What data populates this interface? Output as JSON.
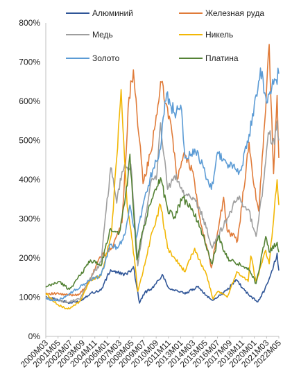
{
  "chart_data": {
    "type": "line",
    "title": "",
    "xlabel": "",
    "ylabel": "",
    "ylim": [
      0,
      800
    ],
    "y_unit_suffix": "%",
    "y_ticks": [
      0,
      100,
      200,
      300,
      400,
      500,
      600,
      700,
      800
    ],
    "y_tick_labels": [
      "0%",
      "100%",
      "200%",
      "300%",
      "400%",
      "500%",
      "600%",
      "700%",
      "800%"
    ],
    "x_tick_labels": [
      "2000M03",
      "2001M05",
      "2002M07",
      "2003M09",
      "2004M11",
      "2006M01",
      "2007M03",
      "2008M05",
      "2009M07",
      "2010M09",
      "2011M11",
      "2013M01",
      "2014M03",
      "2015M05",
      "2016M07",
      "2017M09",
      "2018M11",
      "2020M01",
      "2021M03",
      "2022M05"
    ],
    "grid": false,
    "legend": "top, two columns",
    "x_range": [
      "2000-03",
      "2022-05"
    ],
    "series": [
      {
        "name": "Алюминий",
        "color": "#2f5597",
        "points": [
          [
            "2000-03",
            100
          ],
          [
            "2001-03",
            95
          ],
          [
            "2002-06",
            85
          ],
          [
            "2003-06",
            90
          ],
          [
            "2004-06",
            110
          ],
          [
            "2005-06",
            118
          ],
          [
            "2006-05",
            170
          ],
          [
            "2007-01",
            162
          ],
          [
            "2007-12",
            158
          ],
          [
            "2008-07",
            178
          ],
          [
            "2009-02",
            85
          ],
          [
            "2009-08",
            112
          ],
          [
            "2010-06",
            125
          ],
          [
            "2011-04",
            158
          ],
          [
            "2011-12",
            122
          ],
          [
            "2012-08",
            118
          ],
          [
            "2013-06",
            108
          ],
          [
            "2014-09",
            128
          ],
          [
            "2015-06",
            105
          ],
          [
            "2016-01",
            92
          ],
          [
            "2016-10",
            105
          ],
          [
            "2017-06",
            118
          ],
          [
            "2018-04",
            145
          ],
          [
            "2019-06",
            108
          ],
          [
            "2020-05",
            88
          ],
          [
            "2021-01",
            120
          ],
          [
            "2021-10",
            170
          ],
          [
            "2022-03",
            212
          ],
          [
            "2022-05",
            168
          ]
        ]
      },
      {
        "name": "Железная руда",
        "color": "#e07b39",
        "points": [
          [
            "2000-03",
            110
          ],
          [
            "2001-06",
            108
          ],
          [
            "2002-06",
            105
          ],
          [
            "2003-06",
            108
          ],
          [
            "2004-06",
            145
          ],
          [
            "2005-04",
            200
          ],
          [
            "2006-06",
            225
          ],
          [
            "2007-06",
            290
          ],
          [
            "2008-02",
            610
          ],
          [
            "2008-07",
            680
          ],
          [
            "2009-02",
            500
          ],
          [
            "2009-06",
            390
          ],
          [
            "2010-03",
            470
          ],
          [
            "2010-08",
            540
          ],
          [
            "2011-02",
            650
          ],
          [
            "2011-08",
            595
          ],
          [
            "2012-02",
            540
          ],
          [
            "2012-09",
            400
          ],
          [
            "2013-05",
            470
          ],
          [
            "2014-03",
            420
          ],
          [
            "2014-10",
            310
          ],
          [
            "2015-06",
            235
          ],
          [
            "2015-12",
            175
          ],
          [
            "2016-06",
            250
          ],
          [
            "2017-02",
            355
          ],
          [
            "2017-06",
            270
          ],
          [
            "2018-06",
            245
          ],
          [
            "2019-07",
            495
          ],
          [
            "2020-01",
            380
          ],
          [
            "2020-06",
            320
          ],
          [
            "2021-02",
            580
          ],
          [
            "2021-06",
            745
          ],
          [
            "2021-11",
            415
          ],
          [
            "2022-03",
            615
          ],
          [
            "2022-05",
            455
          ]
        ]
      },
      {
        "name": "Медь",
        "color": "#9e9e9e",
        "points": [
          [
            "2000-03",
            100
          ],
          [
            "2001-06",
            90
          ],
          [
            "2002-06",
            88
          ],
          [
            "2003-06",
            95
          ],
          [
            "2004-06",
            150
          ],
          [
            "2005-06",
            190
          ],
          [
            "2006-05",
            430
          ],
          [
            "2006-12",
            340
          ],
          [
            "2007-06",
            420
          ],
          [
            "2008-04",
            440
          ],
          [
            "2008-12",
            180
          ],
          [
            "2009-06",
            270
          ],
          [
            "2010-03",
            395
          ],
          [
            "2010-09",
            400
          ],
          [
            "2011-02",
            545
          ],
          [
            "2011-10",
            375
          ],
          [
            "2012-06",
            410
          ],
          [
            "2013-06",
            360
          ],
          [
            "2014-06",
            345
          ],
          [
            "2015-03",
            300
          ],
          [
            "2016-01",
            225
          ],
          [
            "2016-06",
            250
          ],
          [
            "2017-06",
            300
          ],
          [
            "2018-06",
            355
          ],
          [
            "2019-06",
            325
          ],
          [
            "2020-03",
            255
          ],
          [
            "2020-12",
            400
          ],
          [
            "2021-05",
            520
          ],
          [
            "2021-12",
            490
          ],
          [
            "2022-03",
            550
          ],
          [
            "2022-05",
            500
          ]
        ]
      },
      {
        "name": "Никель",
        "color": "#f2b705",
        "points": [
          [
            "2000-03",
            110
          ],
          [
            "2001-06",
            78
          ],
          [
            "2002-06",
            70
          ],
          [
            "2003-06",
            90
          ],
          [
            "2004-06",
            145
          ],
          [
            "2005-06",
            155
          ],
          [
            "2006-06",
            260
          ],
          [
            "2007-05",
            630
          ],
          [
            "2007-12",
            330
          ],
          [
            "2008-06",
            240
          ],
          [
            "2008-12",
            115
          ],
          [
            "2009-06",
            165
          ],
          [
            "2010-04",
            265
          ],
          [
            "2011-02",
            335
          ],
          [
            "2011-10",
            225
          ],
          [
            "2012-06",
            200
          ],
          [
            "2013-06",
            165
          ],
          [
            "2014-05",
            225
          ],
          [
            "2014-12",
            185
          ],
          [
            "2015-06",
            160
          ],
          [
            "2016-02",
            95
          ],
          [
            "2016-08",
            115
          ],
          [
            "2017-06",
            100
          ],
          [
            "2018-05",
            165
          ],
          [
            "2019-06",
            140
          ],
          [
            "2019-09",
            205
          ],
          [
            "2020-03",
            140
          ],
          [
            "2021-02",
            220
          ],
          [
            "2021-06",
            185
          ],
          [
            "2022-03",
            400
          ],
          [
            "2022-05",
            335
          ]
        ]
      },
      {
        "name": "Золото",
        "color": "#5b9bd5",
        "points": [
          [
            "2000-03",
            95
          ],
          [
            "2001-06",
            92
          ],
          [
            "2002-06",
            110
          ],
          [
            "2003-06",
            125
          ],
          [
            "2004-06",
            145
          ],
          [
            "2005-06",
            155
          ],
          [
            "2006-05",
            235
          ],
          [
            "2007-01",
            225
          ],
          [
            "2007-10",
            265
          ],
          [
            "2008-03",
            335
          ],
          [
            "2008-10",
            250
          ],
          [
            "2009-06",
            335
          ],
          [
            "2009-12",
            385
          ],
          [
            "2010-06",
            430
          ],
          [
            "2011-01",
            475
          ],
          [
            "2011-09",
            620
          ],
          [
            "2012-06",
            570
          ],
          [
            "2013-01",
            590
          ],
          [
            "2013-06",
            455
          ],
          [
            "2014-06",
            470
          ],
          [
            "2015-03",
            430
          ],
          [
            "2015-12",
            375
          ],
          [
            "2016-07",
            470
          ],
          [
            "2017-06",
            440
          ],
          [
            "2018-08",
            420
          ],
          [
            "2019-06",
            495
          ],
          [
            "2020-08",
            685
          ],
          [
            "2021-03",
            595
          ],
          [
            "2021-09",
            635
          ],
          [
            "2022-02",
            655
          ],
          [
            "2022-05",
            670
          ]
        ]
      },
      {
        "name": "Платина",
        "color": "#548235",
        "points": [
          [
            "2000-03",
            125
          ],
          [
            "2001-06",
            140
          ],
          [
            "2002-06",
            120
          ],
          [
            "2003-06",
            155
          ],
          [
            "2004-06",
            195
          ],
          [
            "2005-06",
            180
          ],
          [
            "2006-05",
            275
          ],
          [
            "2007-03",
            265
          ],
          [
            "2007-12",
            385
          ],
          [
            "2008-03",
            465
          ],
          [
            "2008-11",
            195
          ],
          [
            "2009-06",
            270
          ],
          [
            "2010-04",
            350
          ],
          [
            "2011-02",
            405
          ],
          [
            "2011-10",
            325
          ],
          [
            "2012-06",
            305
          ],
          [
            "2013-03",
            355
          ],
          [
            "2014-03",
            320
          ],
          [
            "2014-12",
            275
          ],
          [
            "2015-06",
            230
          ],
          [
            "2016-01",
            185
          ],
          [
            "2016-08",
            255
          ],
          [
            "2017-06",
            200
          ],
          [
            "2018-06",
            185
          ],
          [
            "2019-06",
            175
          ],
          [
            "2020-03",
            135
          ],
          [
            "2021-02",
            255
          ],
          [
            "2021-06",
            215
          ],
          [
            "2022-03",
            240
          ],
          [
            "2022-05",
            215
          ]
        ]
      }
    ]
  }
}
